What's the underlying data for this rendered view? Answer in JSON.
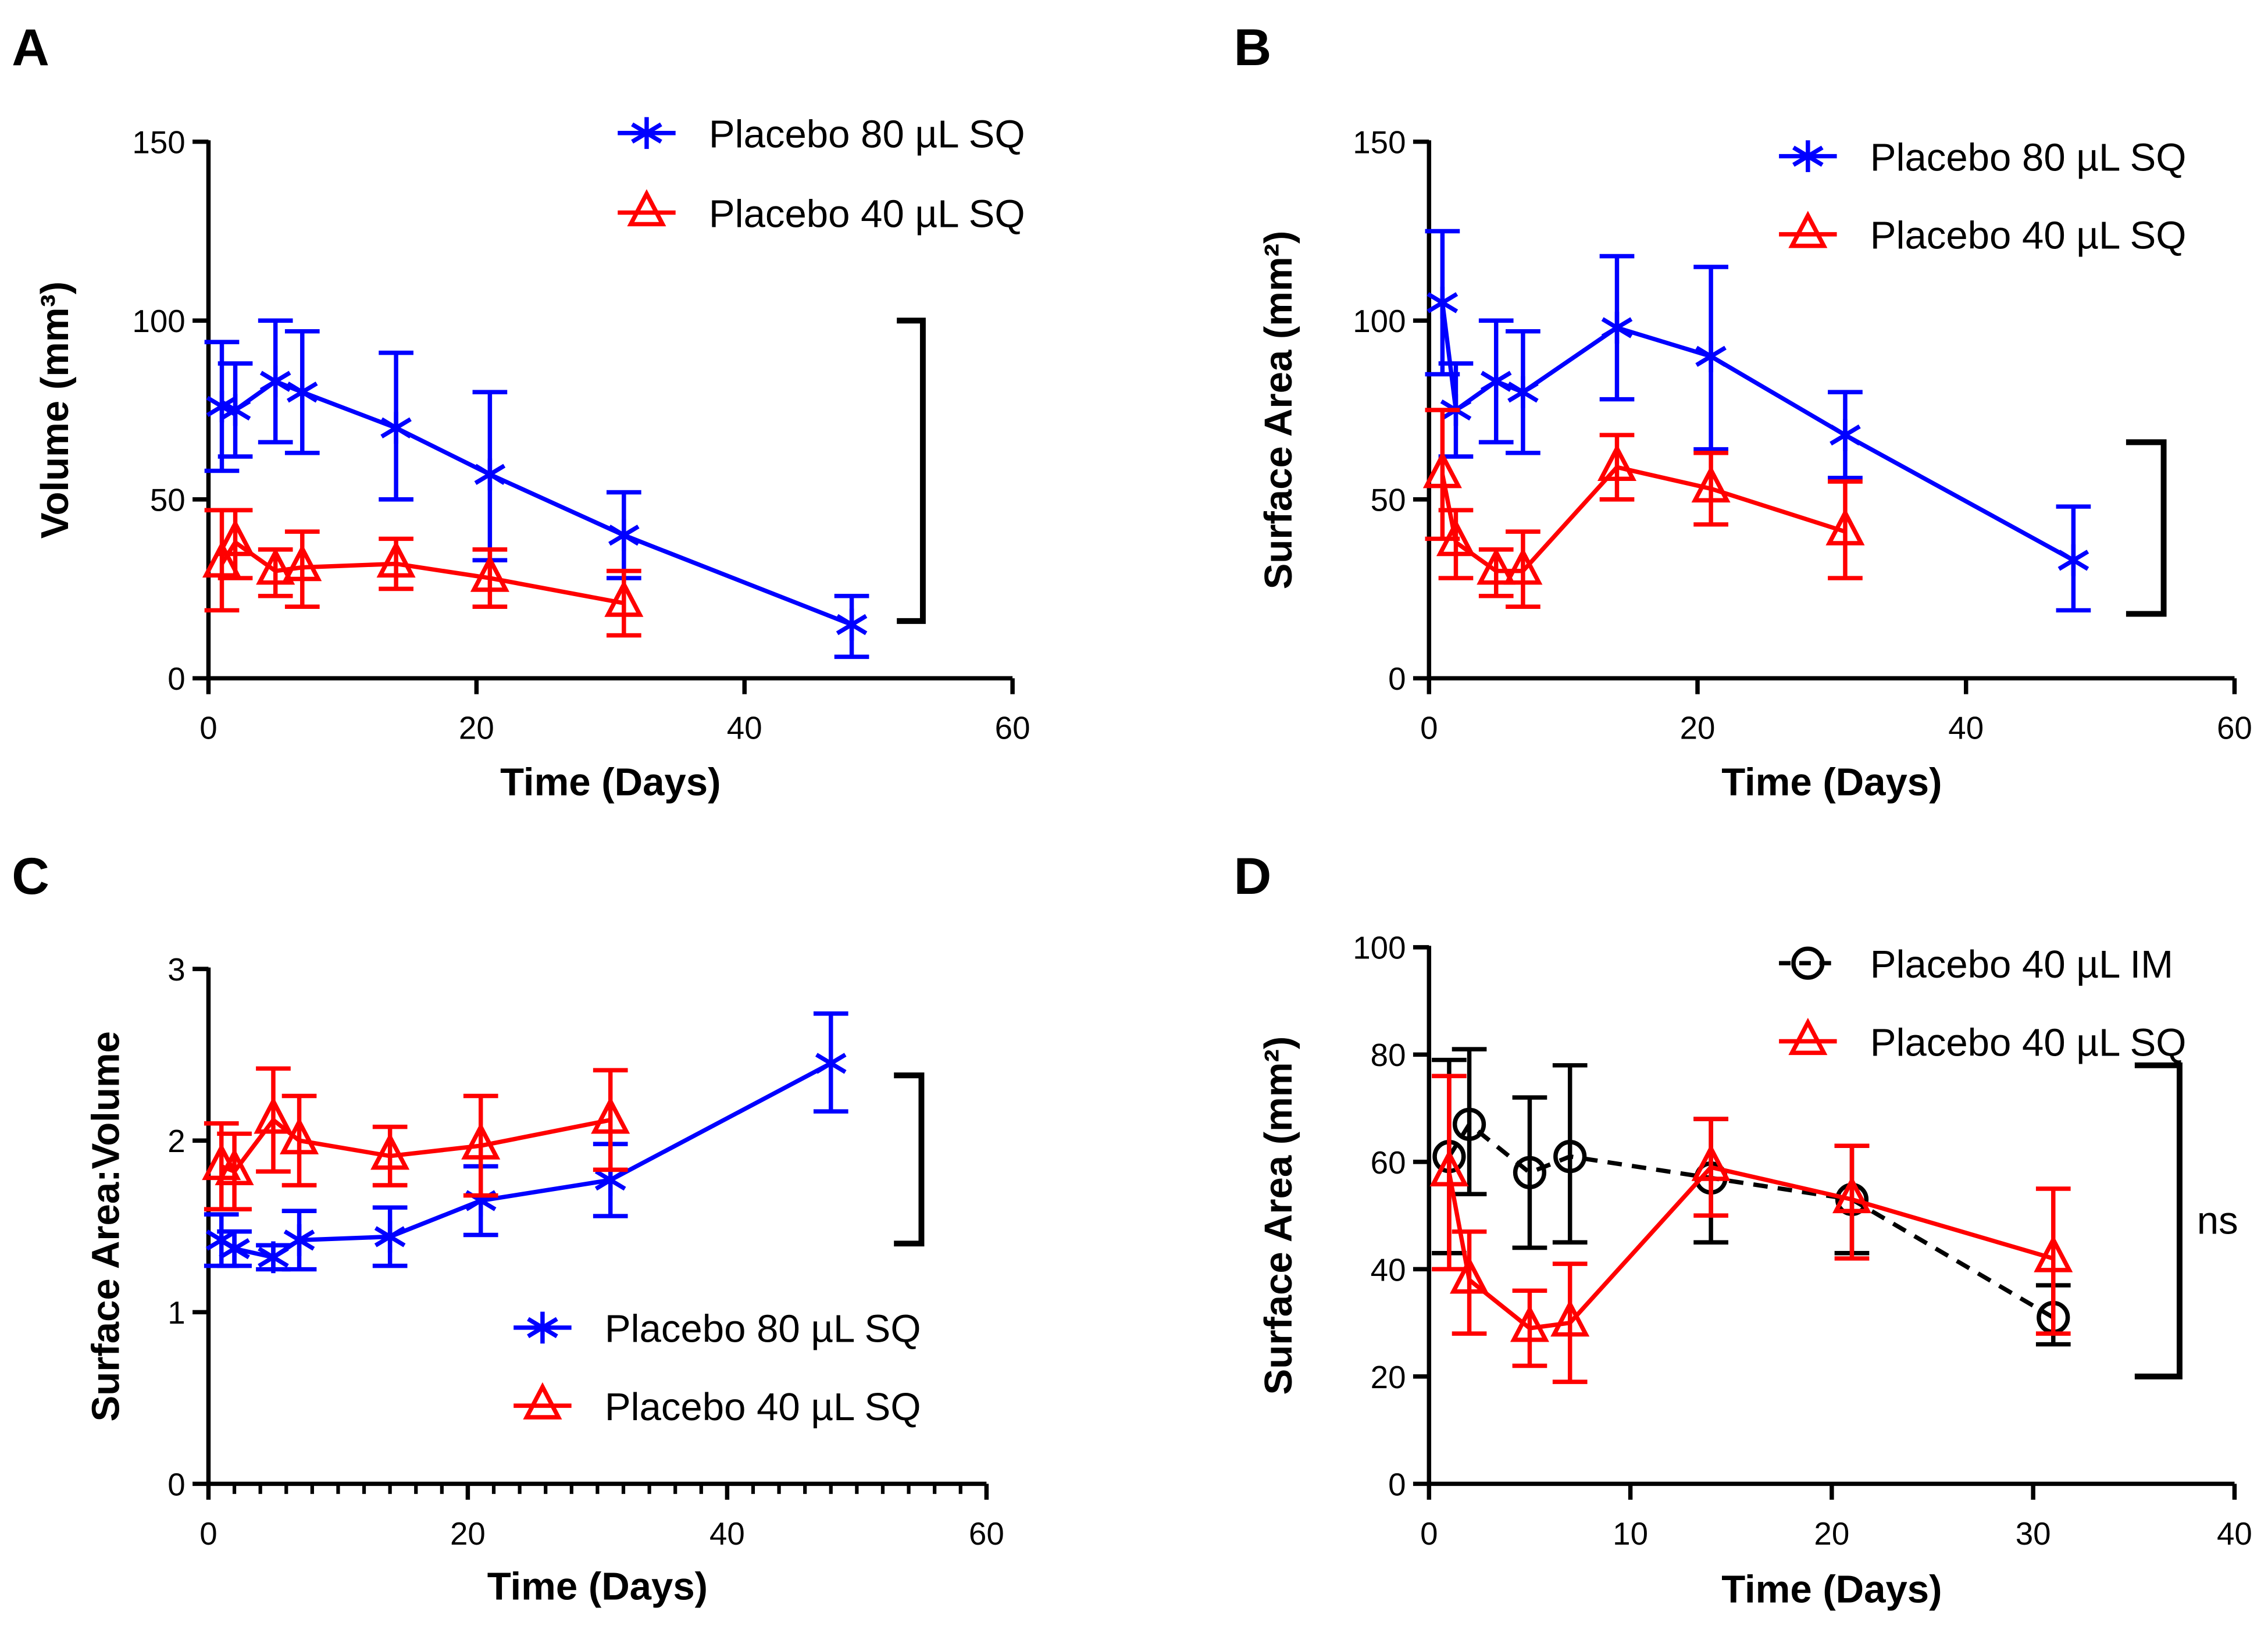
{
  "chart_data": [
    {
      "panel": "A",
      "type": "line",
      "xlabel": "Time (Days)",
      "ylabel": "Volume (mm³)",
      "xlim": [
        0,
        60
      ],
      "ylim": [
        0,
        150
      ],
      "xticks": [
        0,
        20,
        40,
        60
      ],
      "yticks": [
        0,
        50,
        100,
        150
      ],
      "legend_position": "top-right",
      "series": [
        {
          "name": "Placebo 80 µL SQ",
          "color": "#0000ff",
          "marker": "asterisk",
          "dashed": false,
          "x": [
            1,
            2,
            5,
            7,
            14,
            21,
            31,
            48
          ],
          "y": [
            76,
            75,
            83,
            80,
            70,
            57,
            40,
            15
          ],
          "err_low": [
            58,
            62,
            66,
            63,
            50,
            33,
            28,
            6
          ],
          "err_high": [
            94,
            88,
            100,
            97,
            91,
            80,
            52,
            23
          ]
        },
        {
          "name": "Placebo 40 µL SQ",
          "color": "#ff0000",
          "marker": "triangle",
          "dashed": false,
          "x": [
            1,
            2,
            5,
            7,
            14,
            21,
            31
          ],
          "y": [
            32,
            38,
            30,
            31,
            32,
            28,
            21
          ],
          "err_low": [
            19,
            28,
            23,
            20,
            25,
            20,
            12
          ],
          "err_high": [
            47,
            47,
            36,
            41,
            39,
            36,
            30
          ]
        }
      ],
      "bracket": {
        "from": 100,
        "to": 16,
        "label": ""
      }
    },
    {
      "panel": "B",
      "type": "line",
      "xlabel": "Time (Days)",
      "ylabel": "Surface Area (mm²)",
      "xlim": [
        0,
        60
      ],
      "ylim": [
        0,
        150
      ],
      "xticks": [
        0,
        20,
        40,
        60
      ],
      "yticks": [
        0,
        50,
        100,
        150
      ],
      "legend_position": "top-right",
      "series": [
        {
          "name": "Placebo 80 µL SQ",
          "color": "#0000ff",
          "marker": "asterisk",
          "dashed": false,
          "x": [
            1,
            2,
            5,
            7,
            14,
            21,
            31,
            48
          ],
          "y": [
            105,
            75,
            83,
            80,
            98,
            90,
            68,
            33
          ],
          "err_low": [
            85,
            62,
            66,
            63,
            78,
            64,
            56,
            19
          ],
          "err_high": [
            125,
            88,
            100,
            97,
            118,
            115,
            80,
            48
          ]
        },
        {
          "name": "Placebo 40 µL SQ",
          "color": "#ff0000",
          "marker": "triangle",
          "dashed": false,
          "x": [
            1,
            2,
            5,
            7,
            14,
            21,
            31
          ],
          "y": [
            57,
            38,
            30,
            30,
            59,
            53,
            41
          ],
          "err_low": [
            39,
            28,
            23,
            20,
            50,
            43,
            28
          ],
          "err_high": [
            75,
            47,
            36,
            41,
            68,
            63,
            55
          ]
        }
      ],
      "bracket": {
        "from": 66,
        "to": 18,
        "label": ""
      }
    },
    {
      "panel": "C",
      "type": "line",
      "xlabel": "Time (Days)",
      "ylabel": "Surface Area:Volume",
      "xlim": [
        0,
        60
      ],
      "ylim": [
        0,
        3
      ],
      "xticks": [
        0,
        20,
        40,
        60
      ],
      "yticks": [
        0,
        1,
        2,
        3
      ],
      "legend_position": "bottom-right",
      "series": [
        {
          "name": "Placebo 80 µL SQ",
          "color": "#0000ff",
          "marker": "asterisk",
          "dashed": false,
          "x": [
            1,
            2,
            5,
            7,
            14,
            21,
            31,
            48
          ],
          "y": [
            1.42,
            1.37,
            1.32,
            1.42,
            1.44,
            1.65,
            1.77,
            2.45
          ],
          "err_low": [
            1.27,
            1.27,
            1.25,
            1.25,
            1.27,
            1.45,
            1.56,
            2.17
          ],
          "err_high": [
            1.57,
            1.47,
            1.39,
            1.59,
            1.61,
            1.85,
            1.98,
            2.74
          ]
        },
        {
          "name": "Placebo 40 µL SQ",
          "color": "#ff0000",
          "marker": "triangle",
          "dashed": false,
          "x": [
            1,
            2,
            5,
            7,
            14,
            21,
            31
          ],
          "y": [
            1.85,
            1.82,
            2.12,
            2.0,
            1.91,
            1.97,
            2.12
          ],
          "err_low": [
            1.6,
            1.6,
            1.82,
            1.74,
            1.74,
            1.68,
            1.83
          ],
          "err_high": [
            2.1,
            2.04,
            2.42,
            2.26,
            2.08,
            2.26,
            2.41
          ]
        }
      ],
      "bracket": {
        "from": 2.38,
        "to": 1.4,
        "label": ""
      }
    },
    {
      "panel": "D",
      "type": "line",
      "xlabel": "Time (Days)",
      "ylabel": "Surface Area (mm²)",
      "xlim": [
        0,
        40
      ],
      "ylim": [
        0,
        100
      ],
      "xticks": [
        0,
        10,
        20,
        30,
        40
      ],
      "yticks": [
        0,
        20,
        40,
        60,
        80,
        100
      ],
      "legend_position": "top-right",
      "series": [
        {
          "name": "Placebo 40 µL IM",
          "color": "#000000",
          "marker": "circle",
          "dashed": true,
          "x": [
            1,
            2,
            5,
            7,
            14,
            21,
            31
          ],
          "y": [
            61,
            67,
            58,
            61,
            57,
            53,
            31
          ],
          "err_low": [
            43,
            54,
            44,
            45,
            45,
            43,
            26
          ],
          "err_high": [
            79,
            81,
            72,
            78,
            68,
            63,
            37
          ]
        },
        {
          "name": "Placebo 40 µL SQ",
          "color": "#ff0000",
          "marker": "triangle",
          "dashed": false,
          "x": [
            1,
            2,
            5,
            7,
            14,
            21,
            31
          ],
          "y": [
            58,
            38,
            29,
            30,
            59,
            53,
            42
          ],
          "err_low": [
            40,
            28,
            22,
            19,
            50,
            42,
            28
          ],
          "err_high": [
            76,
            47,
            36,
            41,
            68,
            63,
            55
          ]
        }
      ],
      "bracket": {
        "from": 78,
        "to": 20,
        "label": "ns"
      }
    }
  ]
}
